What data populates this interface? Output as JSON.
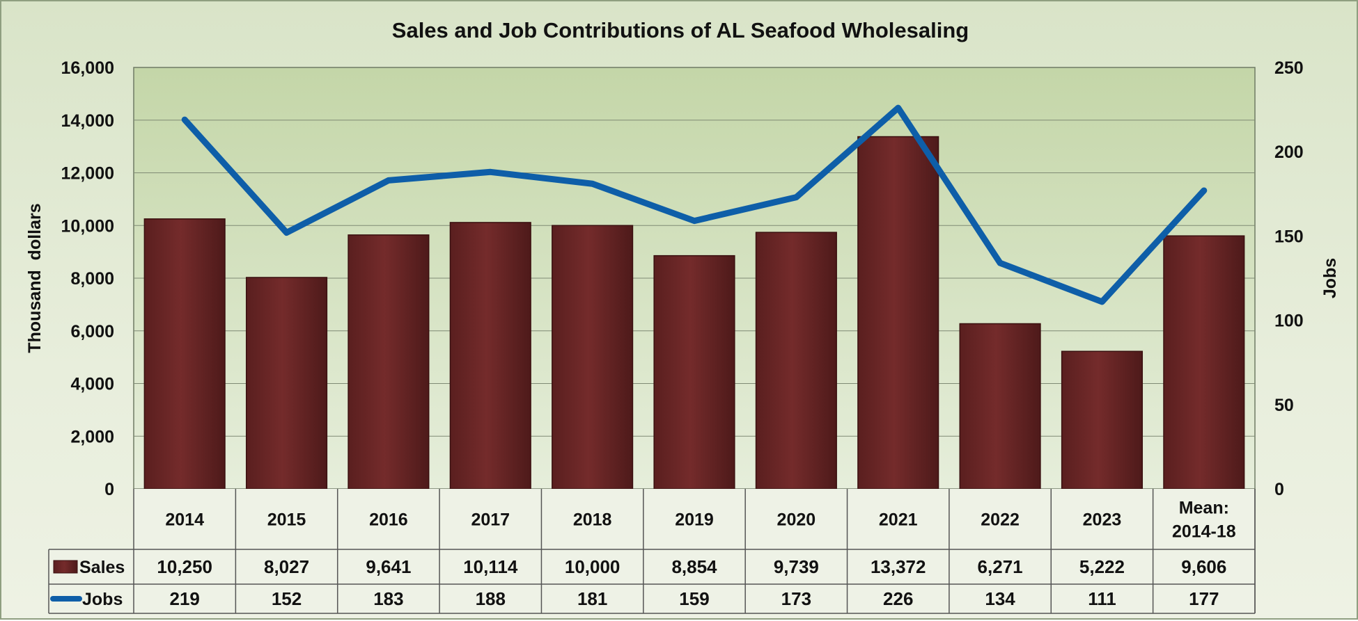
{
  "chart_data": {
    "type": "bar",
    "title": "Sales and Job Contributions of AL Seafood Wholesaling",
    "categories": [
      "2014",
      "2015",
      "2016",
      "2017",
      "2018",
      "2019",
      "2020",
      "2021",
      "2022",
      "2023",
      "Mean:\n2014-18"
    ],
    "series": [
      {
        "name": "Sales",
        "type": "bar",
        "axis": "left",
        "values": [
          10250,
          8027,
          9641,
          10114,
          10000,
          8854,
          9739,
          13372,
          6271,
          5222,
          9606
        ],
        "labels": [
          "10,250",
          "8,027",
          "9,641",
          "10,114",
          "10,000",
          "8,854",
          "9,739",
          "13,372",
          "6,271",
          "5,222",
          "9,606"
        ],
        "color": "#6b2626"
      },
      {
        "name": "Jobs",
        "type": "line",
        "axis": "right",
        "values": [
          219,
          152,
          183,
          188,
          181,
          159,
          173,
          226,
          134,
          111,
          177
        ],
        "labels": [
          "219",
          "152",
          "183",
          "188",
          "181",
          "159",
          "173",
          "226",
          "134",
          "111",
          "177"
        ],
        "color": "#0e5ea8"
      }
    ],
    "ylabel": "Thousand  dollars",
    "y2label": "Jobs",
    "ylim": [
      0,
      16000
    ],
    "y2lim": [
      0,
      250
    ],
    "yticks": [
      "0",
      "2,000",
      "4,000",
      "6,000",
      "8,000",
      "10,000",
      "12,000",
      "14,000",
      "16,000"
    ],
    "y2ticks": [
      "0",
      "50",
      "100",
      "150",
      "200",
      "250"
    ],
    "grid": true,
    "legend": "data-table"
  },
  "colors": {
    "plot_bg_top": "#c4d6a8",
    "plot_bg_bottom": "#e4ecd6",
    "bar": "#6b2626",
    "line": "#0e5ea8",
    "grid": "#7f8a74"
  }
}
